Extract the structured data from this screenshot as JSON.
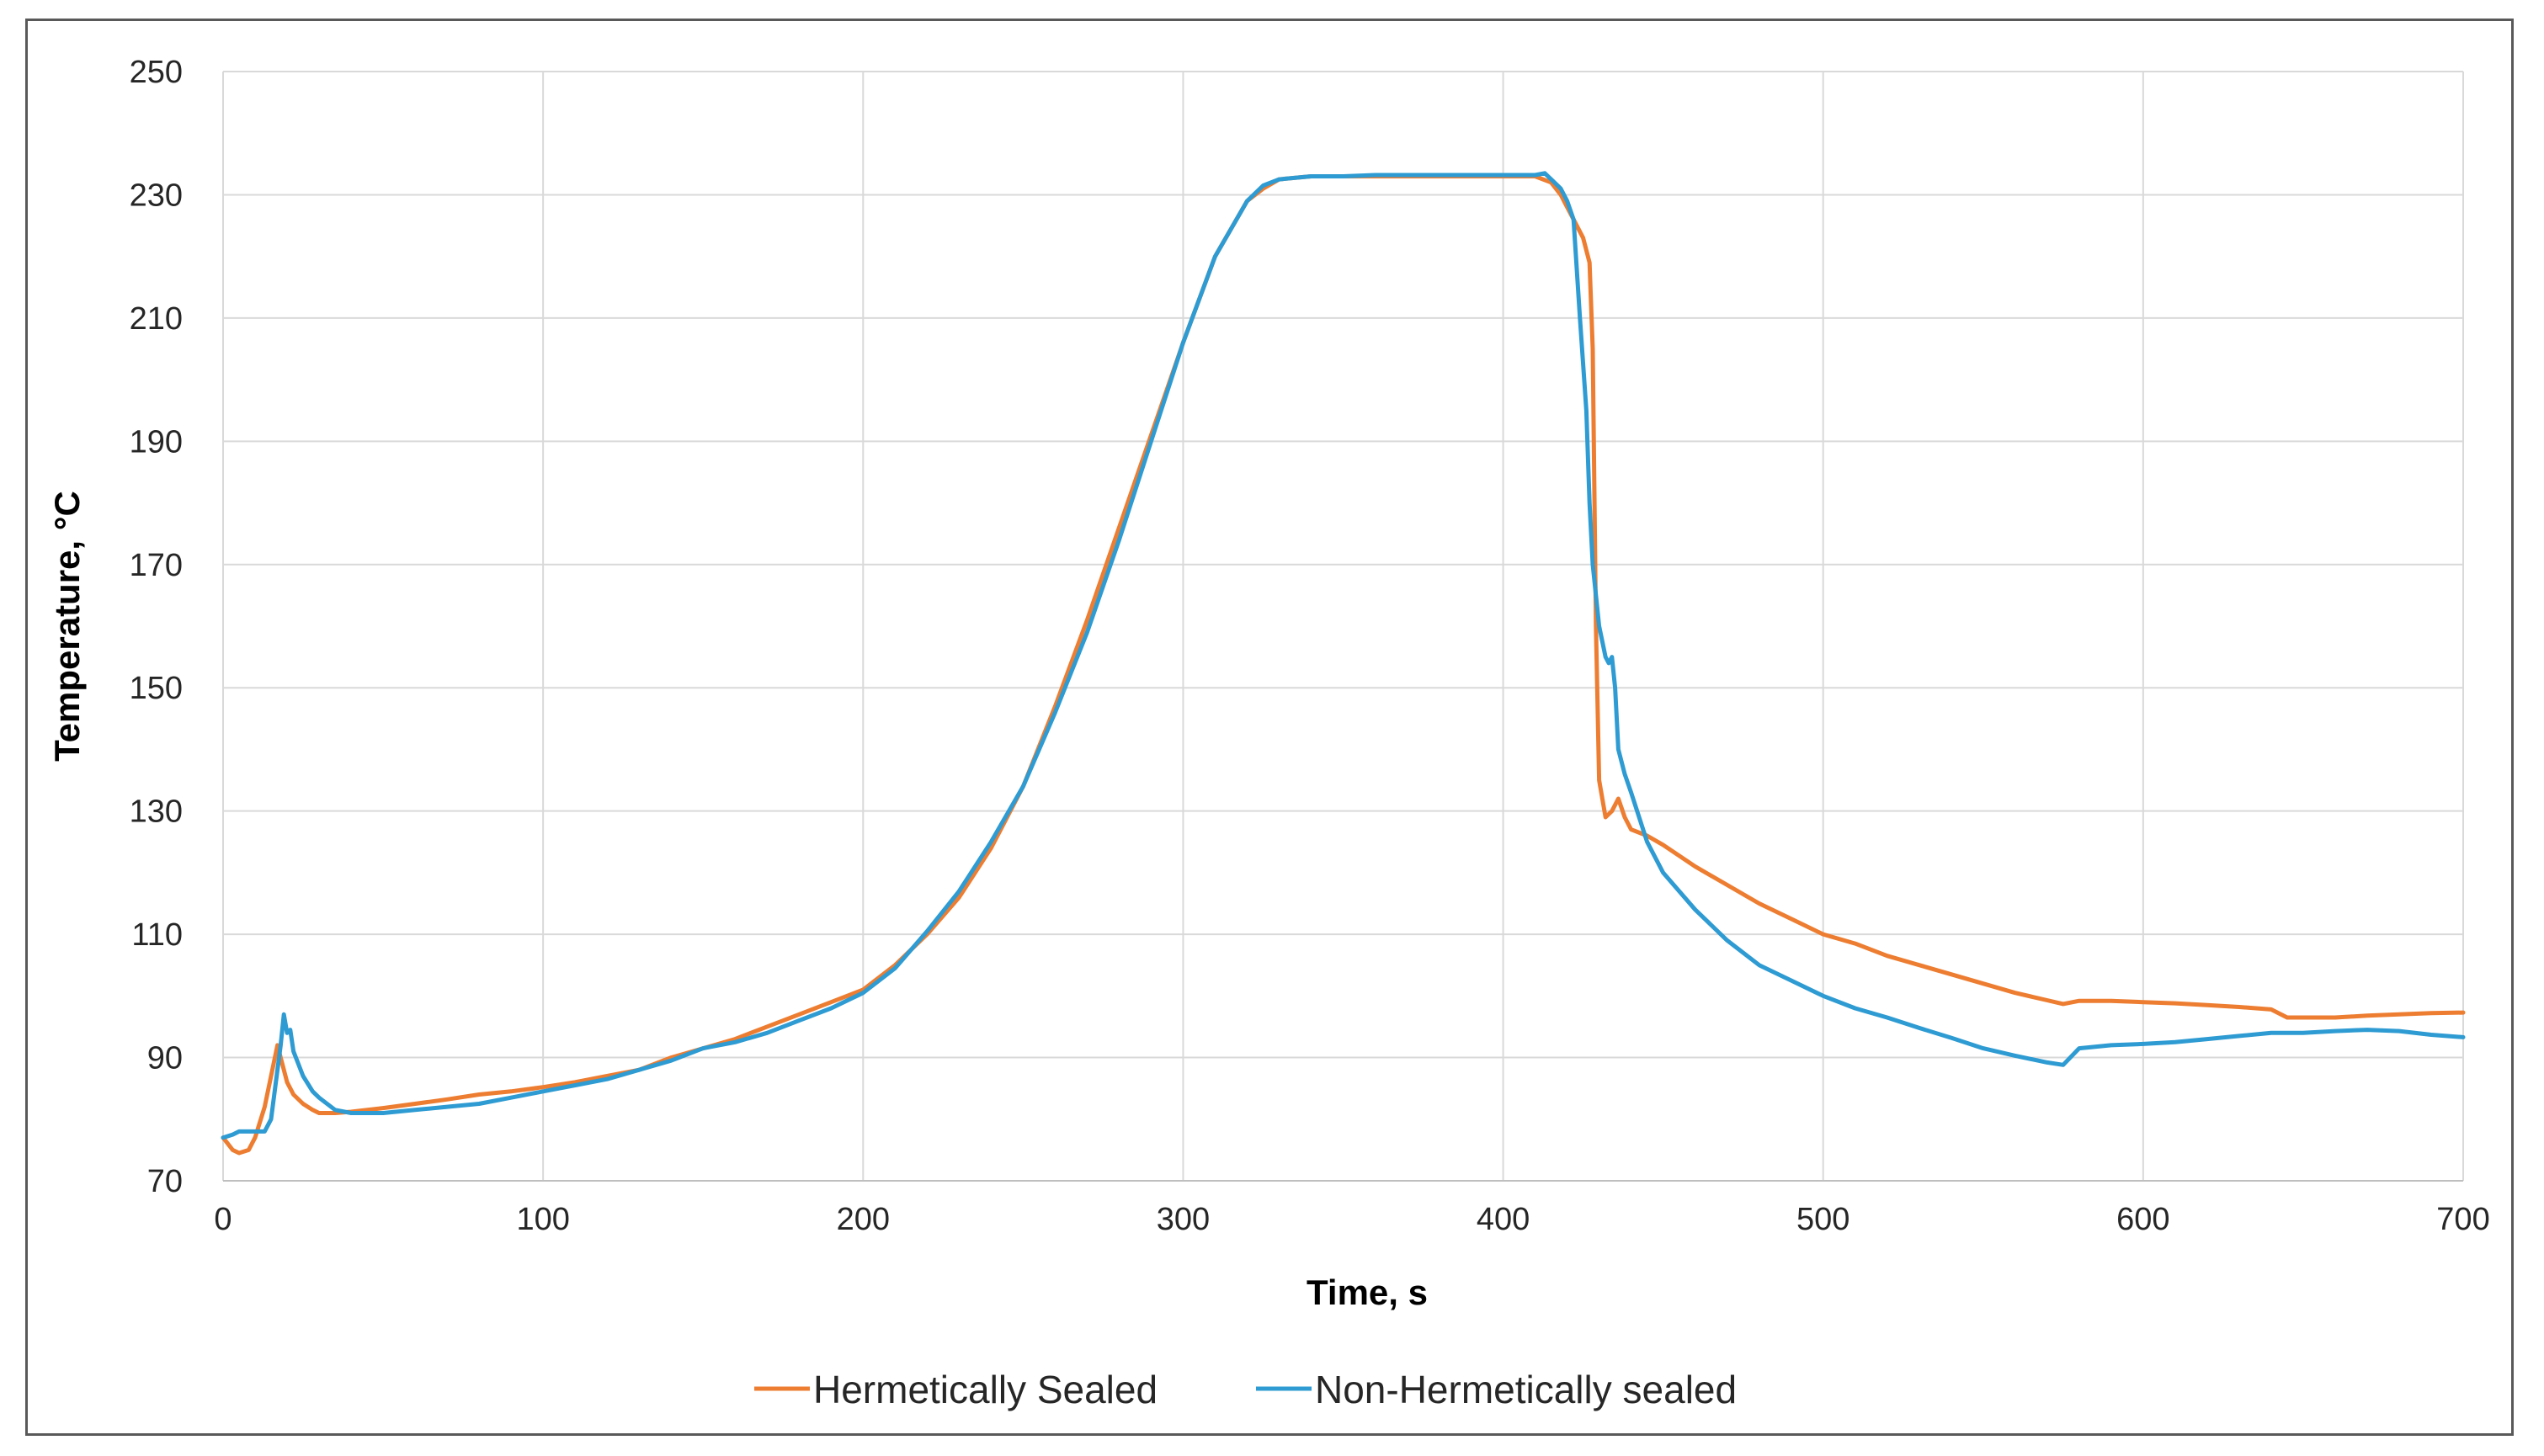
{
  "chart_data": {
    "type": "line",
    "title": "",
    "xlabel": "Time, s",
    "ylabel": "Temperature, °C",
    "xlim": [
      0,
      700
    ],
    "ylim": [
      70,
      250
    ],
    "x_ticks": [
      0,
      100,
      200,
      300,
      400,
      500,
      600,
      700
    ],
    "y_ticks": [
      70,
      90,
      110,
      130,
      150,
      170,
      190,
      210,
      230,
      250
    ],
    "x_tick_labels": [
      "0",
      "100",
      "200",
      "300",
      "400",
      "500",
      "600",
      "700"
    ],
    "y_tick_labels": [
      "70",
      "90",
      "110",
      "130",
      "150",
      "170",
      "190",
      "210",
      "230",
      "250"
    ],
    "grid": true,
    "legend_position": "bottom",
    "series": [
      {
        "name": "Hermetically Sealed",
        "color": "#ED7D31",
        "x": [
          0,
          3,
          5,
          8,
          10,
          13,
          15,
          17,
          18,
          20,
          22,
          25,
          28,
          30,
          35,
          40,
          50,
          60,
          70,
          80,
          90,
          100,
          110,
          120,
          130,
          140,
          150,
          160,
          170,
          180,
          190,
          200,
          210,
          220,
          230,
          240,
          250,
          260,
          270,
          280,
          290,
          300,
          310,
          320,
          325,
          330,
          340,
          350,
          360,
          370,
          380,
          390,
          400,
          410,
          415,
          418,
          420,
          422,
          425,
          427,
          428,
          429,
          430,
          432,
          434,
          436,
          438,
          440,
          445,
          450,
          460,
          470,
          480,
          490,
          500,
          510,
          520,
          530,
          540,
          550,
          560,
          570,
          575,
          580,
          590,
          600,
          610,
          620,
          630,
          640,
          645,
          650,
          660,
          670,
          680,
          690,
          700
        ],
        "values": [
          77,
          75,
          74.5,
          75,
          77,
          82,
          87,
          92,
          90,
          86,
          84,
          82.5,
          81.5,
          81,
          81,
          81.2,
          81.8,
          82.5,
          83.2,
          84,
          84.5,
          85.2,
          86,
          87,
          88,
          90,
          91.5,
          93,
          95,
          97,
          99,
          101,
          105,
          110,
          116,
          124,
          134,
          147,
          161,
          176,
          191,
          206,
          220,
          229,
          231,
          232.5,
          233,
          233,
          233,
          233,
          233,
          233,
          233,
          233,
          232,
          230,
          228,
          226,
          223,
          219,
          205,
          160,
          135,
          129,
          130,
          132,
          129,
          127,
          126,
          124.5,
          121,
          118,
          115,
          112.5,
          110,
          108.5,
          106.5,
          105,
          103.5,
          102,
          100.5,
          99.3,
          98.7,
          99.2,
          99.2,
          99,
          98.8,
          98.5,
          98.2,
          97.8,
          96.5,
          96.5,
          96.5,
          96.8,
          97,
          97.2,
          97.3
        ]
      },
      {
        "name": "Non-Hermetically sealed",
        "color": "#2E9BD2",
        "x": [
          0,
          3,
          5,
          8,
          10,
          13,
          15,
          17,
          18,
          19,
          20,
          21,
          22,
          25,
          28,
          30,
          35,
          40,
          50,
          60,
          70,
          80,
          90,
          100,
          110,
          120,
          130,
          140,
          150,
          160,
          170,
          180,
          190,
          200,
          210,
          220,
          230,
          240,
          250,
          260,
          270,
          280,
          290,
          300,
          310,
          320,
          325,
          330,
          340,
          350,
          360,
          370,
          380,
          390,
          400,
          410,
          413,
          415,
          418,
          420,
          422,
          424,
          426,
          427,
          428,
          430,
          432,
          433,
          434,
          435,
          436,
          438,
          440,
          445,
          450,
          460,
          470,
          480,
          490,
          500,
          510,
          520,
          530,
          540,
          550,
          560,
          570,
          575,
          580,
          590,
          600,
          610,
          620,
          630,
          640,
          645,
          650,
          660,
          670,
          680,
          690,
          700
        ],
        "values": [
          77,
          77.5,
          78,
          78,
          78,
          78,
          80,
          88,
          92,
          97,
          94,
          94.5,
          91,
          87,
          84.5,
          83.5,
          81.5,
          81,
          81,
          81.5,
          82,
          82.5,
          83.5,
          84.5,
          85.5,
          86.5,
          88,
          89.5,
          91.5,
          92.5,
          94,
          96,
          98,
          100.5,
          104.5,
          110.5,
          117,
          125,
          134,
          146,
          159,
          174,
          190,
          206,
          220,
          229,
          231.5,
          232.5,
          233,
          233,
          233.2,
          233.2,
          233.2,
          233.2,
          233.2,
          233.2,
          233.5,
          232.5,
          231,
          229,
          226,
          210,
          195,
          180,
          170,
          160,
          155,
          154,
          155,
          150,
          140,
          136,
          133,
          125,
          120,
          114,
          109,
          105,
          102.5,
          100,
          98,
          96.5,
          94.8,
          93.2,
          91.5,
          90.3,
          89.2,
          88.8,
          91.5,
          92,
          92.2,
          92.5,
          93,
          93.5,
          94,
          94,
          94,
          94.3,
          94.5,
          94.3,
          93.7,
          93.3
        ]
      }
    ]
  }
}
